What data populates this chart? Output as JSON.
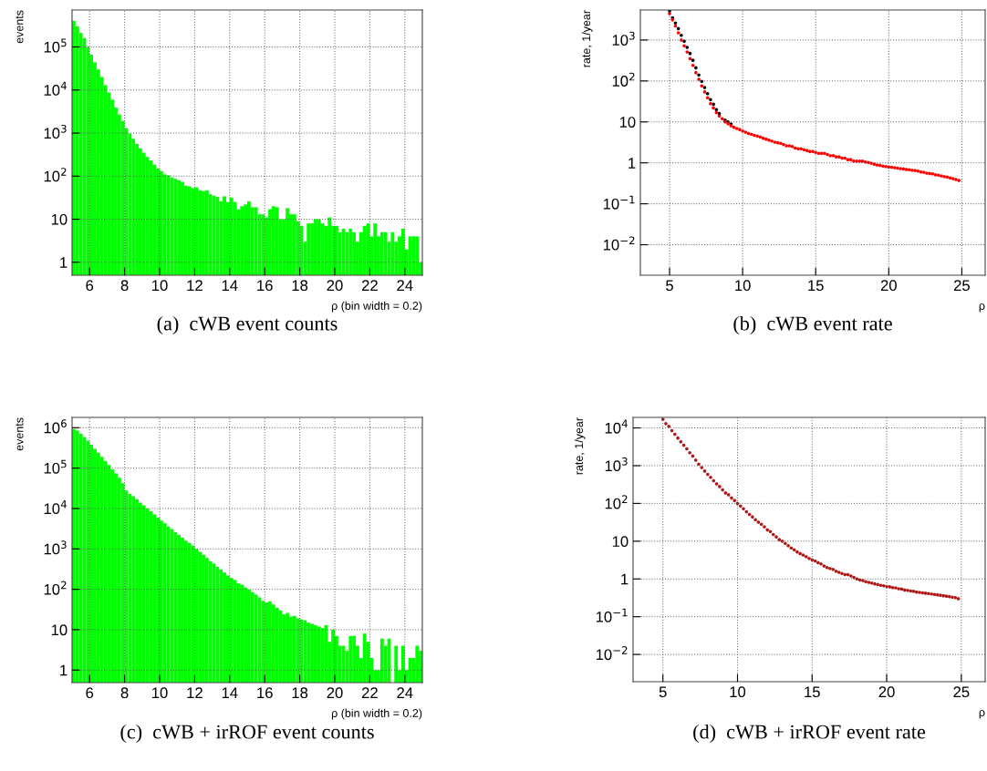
{
  "chart_data": [
    {
      "type": "histogram",
      "xlabel": "ρ (bin width = 0.2)",
      "ylabel": "events",
      "annotations": [
        "(a)  cWB event counts"
      ],
      "color": "#00ff00",
      "log": "y",
      "grid": true,
      "bins": [
        5,
        5.2,
        5.4,
        5.6,
        5.8,
        6,
        6.2,
        6.4,
        6.6,
        6.8,
        7,
        7.2,
        7.4,
        7.6,
        7.8,
        8,
        8.2,
        8.4,
        8.6,
        8.8,
        9,
        9.2,
        9.4,
        9.6,
        9.8,
        10,
        10.2,
        10.4,
        10.6,
        10.8,
        11,
        11.2,
        11.4,
        11.6,
        11.8,
        12,
        12.2,
        12.4,
        12.6,
        12.8,
        13,
        13.2,
        13.4,
        13.6,
        13.8,
        14,
        14.2,
        14.4,
        14.6,
        14.8,
        15,
        15.2,
        15.4,
        15.6,
        15.8,
        16,
        16.2,
        16.4,
        16.6,
        16.8,
        17,
        17.2,
        17.4,
        17.6,
        17.8,
        18,
        18.2,
        18.4,
        18.6,
        18.8,
        19,
        19.2,
        19.4,
        19.6,
        19.8,
        20,
        20.2,
        20.4,
        20.6,
        20.8,
        21,
        21.2,
        21.4,
        21.6,
        21.8,
        22,
        22.2,
        22.4,
        22.6,
        22.8,
        23,
        23.2,
        23.4,
        23.6,
        23.8,
        24,
        24.2,
        24.4,
        24.6,
        24.8,
        25
      ],
      "values": [
        400000,
        300000,
        210000,
        160000,
        100000,
        66000,
        44000,
        30000,
        20000,
        13000,
        8700,
        5900,
        3900,
        2700,
        1900,
        1300,
        980,
        740,
        560,
        440,
        350,
        280,
        230,
        185,
        150,
        130,
        110,
        105,
        93,
        87,
        80,
        74,
        60,
        58,
        53,
        55,
        47,
        45,
        47,
        38,
        35,
        33,
        26,
        34,
        25,
        32,
        25,
        17,
        20,
        22,
        26,
        19,
        19,
        13,
        13,
        11,
        17,
        20,
        19,
        10,
        10,
        18,
        13,
        13,
        9,
        7,
        3,
        8,
        8,
        10,
        10,
        8,
        7,
        11,
        7,
        7,
        5,
        6,
        5,
        6,
        5,
        3,
        5,
        7,
        8,
        4,
        8,
        4,
        5,
        5,
        3,
        5,
        3,
        4,
        6,
        2,
        4,
        4,
        4,
        1
      ],
      "xlim": [
        5,
        25
      ],
      "ylim": [
        0.5,
        720000
      ],
      "xticks": [
        6,
        8,
        10,
        12,
        14,
        16,
        18,
        20,
        22,
        24
      ],
      "yticks": [
        1,
        10,
        {
          "value": 100,
          "label": "10$^{2}$"
        },
        {
          "value": 1000,
          "label": "10$^{3}$"
        },
        {
          "value": 10000,
          "label": "10$^{4}$"
        },
        {
          "value": 100000,
          "label": "10$^{5}$"
        }
      ]
    },
    {
      "type": "scatter",
      "xlabel": "ρ",
      "ylabel": "rate, 1/year",
      "annotations": [
        "(b)  cWB event rate"
      ],
      "log": "y",
      "grid": true,
      "marker": "circle",
      "x": [
        5,
        5.2,
        5.4,
        5.6,
        5.8,
        6,
        6.2,
        6.4,
        6.6,
        6.8,
        7,
        7.2,
        7.4,
        7.6,
        7.8,
        8,
        8.2,
        8.4,
        8.6,
        8.8,
        9,
        9.2,
        9.4,
        9.6,
        9.8,
        10,
        10.2,
        10.4,
        10.6,
        10.8,
        11,
        11.2,
        11.4,
        11.6,
        11.8,
        12,
        12.2,
        12.4,
        12.6,
        12.8,
        13,
        13.2,
        13.4,
        13.6,
        13.8,
        14,
        14.2,
        14.4,
        14.6,
        14.8,
        15,
        15.2,
        15.4,
        15.6,
        15.8,
        16,
        16.2,
        16.4,
        16.6,
        16.8,
        17,
        17.2,
        17.4,
        17.6,
        17.8,
        18,
        18.2,
        18.4,
        18.6,
        18.8,
        19,
        19.2,
        19.4,
        19.6,
        19.8,
        20,
        20.2,
        20.4,
        20.6,
        20.8,
        21,
        21.2,
        21.4,
        21.6,
        21.8,
        22,
        22.2,
        22.4,
        22.6,
        22.8,
        23,
        23.2,
        23.4,
        23.6,
        23.8,
        24,
        24.2,
        24.4,
        24.6,
        24.8
      ],
      "series": [
        {
          "color": "#000000",
          "values": [
            5100,
            3500,
            2600,
            1900,
            1300,
            930,
            660,
            470,
            320,
            210,
            140,
            98,
            69,
            49,
            35,
            27,
            20,
            16,
            null,
            11,
            10,
            8.9,
            null,
            null,
            null,
            null,
            null,
            null,
            null,
            null,
            null,
            null,
            null,
            null,
            null,
            null,
            null,
            null,
            null,
            null,
            null,
            null,
            null,
            null,
            null,
            null,
            null,
            null,
            null,
            null,
            null,
            null,
            null,
            null,
            null,
            null,
            null,
            null,
            null,
            null,
            null,
            null,
            null,
            null,
            null,
            null,
            null,
            null,
            null,
            null,
            null,
            null,
            null,
            null,
            null,
            null,
            null,
            null,
            null,
            null,
            null,
            null,
            null,
            null,
            null,
            null,
            null,
            null,
            null,
            null,
            null,
            null,
            null,
            null,
            null,
            null,
            null,
            null,
            null,
            null
          ]
        },
        {
          "color": "#ff0000",
          "values": [
            4400,
            3100,
            2200,
            1500,
            1000,
            720,
            510,
            350,
            240,
            160,
            110,
            76,
            54,
            39,
            28,
            22,
            17,
            14,
            12,
            10,
            9.1,
            8.1,
            7.4,
            6.9,
            6.5,
            6.0,
            5.6,
            5.2,
            5.0,
            4.7,
            4.5,
            4.3,
            4.0,
            3.8,
            3.6,
            3.4,
            3.2,
            3.1,
            3.0,
            2.8,
            2.6,
            2.6,
            2.5,
            2.3,
            2.2,
            2.2,
            2.1,
            2.0,
            1.9,
            1.9,
            1.8,
            1.7,
            1.7,
            1.7,
            1.6,
            1.5,
            1.5,
            1.4,
            1.4,
            1.3,
            1.3,
            1.2,
            1.2,
            1.1,
            1.1,
            1.1,
            1.1,
            1.05,
            1.02,
            0.98,
            0.93,
            0.89,
            0.87,
            0.83,
            0.81,
            0.79,
            0.78,
            0.76,
            0.74,
            0.72,
            0.71,
            0.69,
            0.68,
            0.66,
            0.65,
            0.63,
            0.6,
            0.59,
            0.56,
            0.55,
            0.54,
            0.51,
            0.5,
            0.48,
            0.46,
            0.45,
            0.43,
            0.41,
            0.39,
            0.37
          ]
        }
      ],
      "xlim": [
        3,
        26.6
      ],
      "ylim": [
        0.0018,
        5400
      ],
      "xticks": [
        5,
        10,
        15,
        20,
        25
      ],
      "yticks": [
        {
          "value": 0.01,
          "label": "10$^{−2}$"
        },
        {
          "value": 0.1,
          "label": "10$^{−1}$"
        },
        1,
        10,
        {
          "value": 100,
          "label": "10$^{2}$"
        },
        {
          "value": 1000,
          "label": "10$^{3}$"
        }
      ]
    },
    {
      "type": "histogram",
      "xlabel": "ρ (bin width = 0.2)",
      "ylabel": "events",
      "annotations": [
        "(c)  cWB + irROF event counts"
      ],
      "color": "#00ff00",
      "log": "y",
      "grid": true,
      "bins": [
        5,
        5.2,
        5.4,
        5.6,
        5.8,
        6,
        6.2,
        6.4,
        6.6,
        6.8,
        7,
        7.2,
        7.4,
        7.6,
        7.8,
        8,
        8.2,
        8.4,
        8.6,
        8.8,
        9,
        9.2,
        9.4,
        9.6,
        9.8,
        10,
        10.2,
        10.4,
        10.6,
        10.8,
        11,
        11.2,
        11.4,
        11.6,
        11.8,
        12,
        12.2,
        12.4,
        12.6,
        12.8,
        13,
        13.2,
        13.4,
        13.6,
        13.8,
        14,
        14.2,
        14.4,
        14.6,
        14.8,
        15,
        15.2,
        15.4,
        15.6,
        15.8,
        16,
        16.2,
        16.4,
        16.6,
        16.8,
        17,
        17.2,
        17.4,
        17.6,
        17.8,
        18,
        18.2,
        18.4,
        18.6,
        18.8,
        19,
        19.2,
        19.4,
        19.6,
        19.8,
        20,
        20.2,
        20.4,
        20.6,
        20.8,
        21,
        21.2,
        21.4,
        21.6,
        21.8,
        22,
        22.2,
        22.4,
        22.6,
        22.8,
        23,
        23.2,
        23.4,
        23.6,
        23.8,
        24,
        24.2,
        24.4,
        24.6,
        24.8,
        25
      ],
      "values": [
        930000,
        850000,
        710000,
        590000,
        480000,
        380000,
        300000,
        240000,
        190000,
        150000,
        120000,
        93000,
        74000,
        58000,
        42000,
        28000,
        23000,
        20000,
        17000,
        14000,
        12000,
        10000,
        8500,
        7100,
        5900,
        5000,
        4300,
        3600,
        3100,
        2600,
        2200,
        1900,
        1600,
        1400,
        1200,
        1000,
        850,
        710,
        600,
        500,
        430,
        360,
        310,
        260,
        220,
        190,
        170,
        140,
        130,
        110,
        98,
        85,
        74,
        63,
        52,
        47,
        50,
        42,
        35,
        30,
        24,
        26,
        21,
        22,
        19,
        18,
        17,
        15,
        14,
        13,
        12,
        11,
        13,
        5,
        10,
        7,
        4,
        4,
        3,
        7,
        7,
        4,
        2,
        8,
        5,
        2,
        1,
        1,
        6,
        4,
        6,
        null,
        4,
        1,
        4,
        1,
        2,
        2,
        4,
        3
      ],
      "xlim": [
        5,
        25
      ],
      "ylim": [
        0.49,
        1800000
      ],
      "xticks": [
        6,
        8,
        10,
        12,
        14,
        16,
        18,
        20,
        22,
        24
      ],
      "yticks": [
        1,
        10,
        {
          "value": 100,
          "label": "10$^{2}$"
        },
        {
          "value": 1000,
          "label": "10$^{3}$"
        },
        {
          "value": 10000,
          "label": "10$^{4}$"
        },
        {
          "value": 100000,
          "label": "10$^{5}$"
        },
        {
          "value": 1000000,
          "label": "10$^{6}$"
        }
      ]
    },
    {
      "type": "scatter",
      "xlabel": "ρ",
      "ylabel": "rate, 1/year",
      "annotations": [
        "(d)  cWB + irROF event rate"
      ],
      "log": "y",
      "grid": true,
      "marker": "circle",
      "x": [
        5,
        5.2,
        5.4,
        5.6,
        5.8,
        6,
        6.2,
        6.4,
        6.6,
        6.8,
        7,
        7.2,
        7.4,
        7.6,
        7.8,
        8,
        8.2,
        8.4,
        8.6,
        8.8,
        9,
        9.2,
        9.4,
        9.6,
        9.8,
        10,
        10.2,
        10.4,
        10.6,
        10.8,
        11,
        11.2,
        11.4,
        11.6,
        11.8,
        12,
        12.2,
        12.4,
        12.6,
        12.8,
        13,
        13.2,
        13.4,
        13.6,
        13.8,
        14,
        14.2,
        14.4,
        14.6,
        14.8,
        15,
        15.2,
        15.4,
        15.6,
        15.8,
        16,
        16.2,
        16.4,
        16.6,
        16.8,
        17,
        17.2,
        17.4,
        17.6,
        17.8,
        18,
        18.2,
        18.4,
        18.6,
        18.8,
        19,
        19.2,
        19.4,
        19.6,
        19.8,
        20,
        20.2,
        20.4,
        20.6,
        20.8,
        21,
        21.2,
        21.4,
        21.6,
        21.8,
        22,
        22.2,
        22.4,
        22.6,
        22.8,
        23,
        23.2,
        23.4,
        23.6,
        23.8,
        24,
        24.2,
        24.4,
        24.6,
        24.8
      ],
      "series": [
        {
          "color": "#b01818",
          "values": [
            17000,
            13000,
            11000,
            8500,
            6800,
            5400,
            4300,
            3500,
            2800,
            2200,
            1800,
            1400,
            1100,
            890,
            720,
            590,
            490,
            400,
            330,
            280,
            230,
            190,
            170,
            140,
            120,
            100,
            85,
            72,
            60,
            51,
            44,
            37,
            32,
            28,
            24,
            20,
            18,
            15,
            13,
            11,
            10,
            8.7,
            7.6,
            6.6,
            5.9,
            5.2,
            4.7,
            4.3,
            3.9,
            3.5,
            3.2,
            3.0,
            2.7,
            2.5,
            2.2,
            2.0,
            1.9,
            1.8,
            1.6,
            1.5,
            1.4,
            1.3,
            1.3,
            1.2,
            1.1,
            1.0,
            0.95,
            0.91,
            0.85,
            0.81,
            0.78,
            0.74,
            0.71,
            0.68,
            0.66,
            0.63,
            0.62,
            0.59,
            0.58,
            0.55,
            0.54,
            0.51,
            0.5,
            0.48,
            0.47,
            0.45,
            0.44,
            0.43,
            0.42,
            0.41,
            0.4,
            0.39,
            0.38,
            0.37,
            0.36,
            0.35,
            0.34,
            0.33,
            0.32,
            0.3
          ]
        }
      ],
      "xlim": [
        3,
        26.6
      ],
      "ylim": [
        0.0019,
        19000
      ],
      "xticks": [
        5,
        10,
        15,
        20,
        25
      ],
      "yticks": [
        {
          "value": 0.01,
          "label": "10$^{−2}$"
        },
        {
          "value": 0.1,
          "label": "10$^{−1}$"
        },
        1,
        10,
        {
          "value": 100,
          "label": "10$^{2}$"
        },
        {
          "value": 1000,
          "label": "10$^{3}$"
        },
        {
          "value": 10000,
          "label": "10$^{4}$"
        }
      ]
    }
  ]
}
